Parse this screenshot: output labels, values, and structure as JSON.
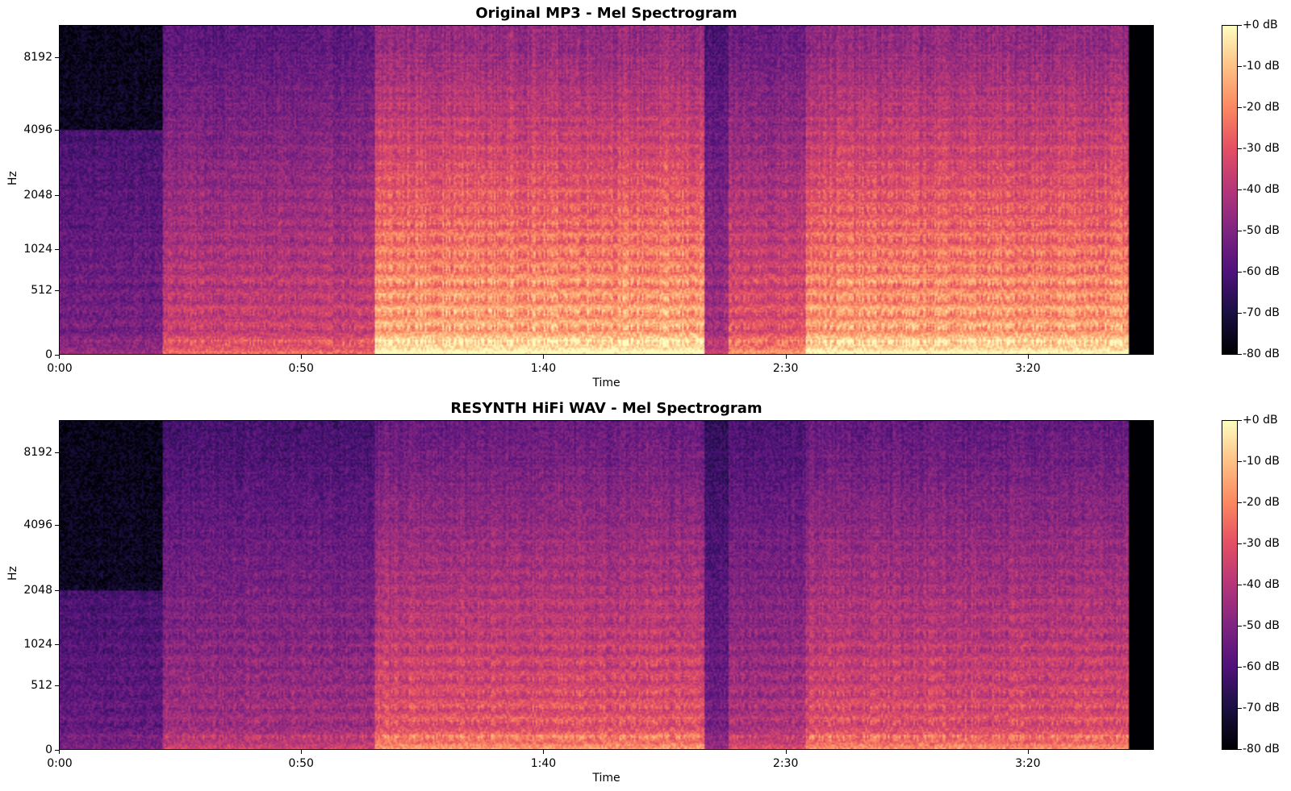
{
  "chart_data": [
    {
      "type": "heatmap",
      "title": "Original MP3 - Mel Spectrogram",
      "xlabel": "Time",
      "ylabel": "Hz",
      "x_ticks": [
        "0:00",
        "0:50",
        "1:40",
        "2:30",
        "3:20"
      ],
      "x_tick_seconds": [
        0,
        50,
        100,
        150,
        200
      ],
      "x_range_seconds": [
        0,
        226
      ],
      "y_ticks": [
        "0",
        "512",
        "1024",
        "2048",
        "4096",
        "8192"
      ],
      "y_tick_hz": [
        0,
        512,
        1024,
        2048,
        4096,
        8192
      ],
      "y_scale": "mel",
      "y_range_hz": [
        0,
        11025
      ],
      "colorbar": {
        "ticks": [
          "+0 dB",
          "-10 dB",
          "-20 dB",
          "-30 dB",
          "-40 dB",
          "-50 dB",
          "-60 dB",
          "-70 dB",
          "-80 dB"
        ],
        "range_db": [
          -80,
          0
        ],
        "colormap": "magma"
      },
      "energy_profile_seconds": [
        {
          "start": 0,
          "end": 21,
          "level": 0.35,
          "hf_cutoff_hz": 4096
        },
        {
          "start": 21,
          "end": 65,
          "level": 0.55,
          "hf_cutoff_hz": 11025
        },
        {
          "start": 65,
          "end": 133,
          "level": 0.82,
          "hf_cutoff_hz": 11025
        },
        {
          "start": 133,
          "end": 138,
          "level": 0.45,
          "hf_cutoff_hz": 11025
        },
        {
          "start": 138,
          "end": 154,
          "level": 0.62,
          "hf_cutoff_hz": 11025
        },
        {
          "start": 154,
          "end": 221,
          "level": 0.8,
          "hf_cutoff_hz": 11025
        },
        {
          "start": 221,
          "end": 226,
          "level": 0.0,
          "hf_cutoff_hz": 0
        }
      ]
    },
    {
      "type": "heatmap",
      "title": "RESYNTH HiFi WAV - Mel Spectrogram",
      "xlabel": "Time",
      "ylabel": "Hz",
      "x_ticks": [
        "0:00",
        "0:50",
        "1:40",
        "2:30",
        "3:20"
      ],
      "x_tick_seconds": [
        0,
        50,
        100,
        150,
        200
      ],
      "x_range_seconds": [
        0,
        226
      ],
      "y_ticks": [
        "0",
        "512",
        "1024",
        "2048",
        "4096",
        "8192"
      ],
      "y_tick_hz": [
        0,
        512,
        1024,
        2048,
        4096,
        8192
      ],
      "y_scale": "mel",
      "y_range_hz": [
        0,
        11025
      ],
      "colorbar": {
        "ticks": [
          "+0 dB",
          "-10 dB",
          "-20 dB",
          "-30 dB",
          "-40 dB",
          "-50 dB",
          "-60 dB",
          "-70 dB",
          "-80 dB"
        ],
        "range_db": [
          -80,
          0
        ],
        "colormap": "magma"
      },
      "energy_profile_seconds": [
        {
          "start": 0,
          "end": 21,
          "level": 0.3,
          "hf_cutoff_hz": 2048
        },
        {
          "start": 21,
          "end": 65,
          "level": 0.45,
          "hf_cutoff_hz": 11025
        },
        {
          "start": 65,
          "end": 133,
          "level": 0.62,
          "hf_cutoff_hz": 11025
        },
        {
          "start": 133,
          "end": 138,
          "level": 0.35,
          "hf_cutoff_hz": 11025
        },
        {
          "start": 138,
          "end": 154,
          "level": 0.48,
          "hf_cutoff_hz": 11025
        },
        {
          "start": 154,
          "end": 221,
          "level": 0.6,
          "hf_cutoff_hz": 11025
        },
        {
          "start": 221,
          "end": 226,
          "level": 0.0,
          "hf_cutoff_hz": 0
        }
      ]
    }
  ]
}
